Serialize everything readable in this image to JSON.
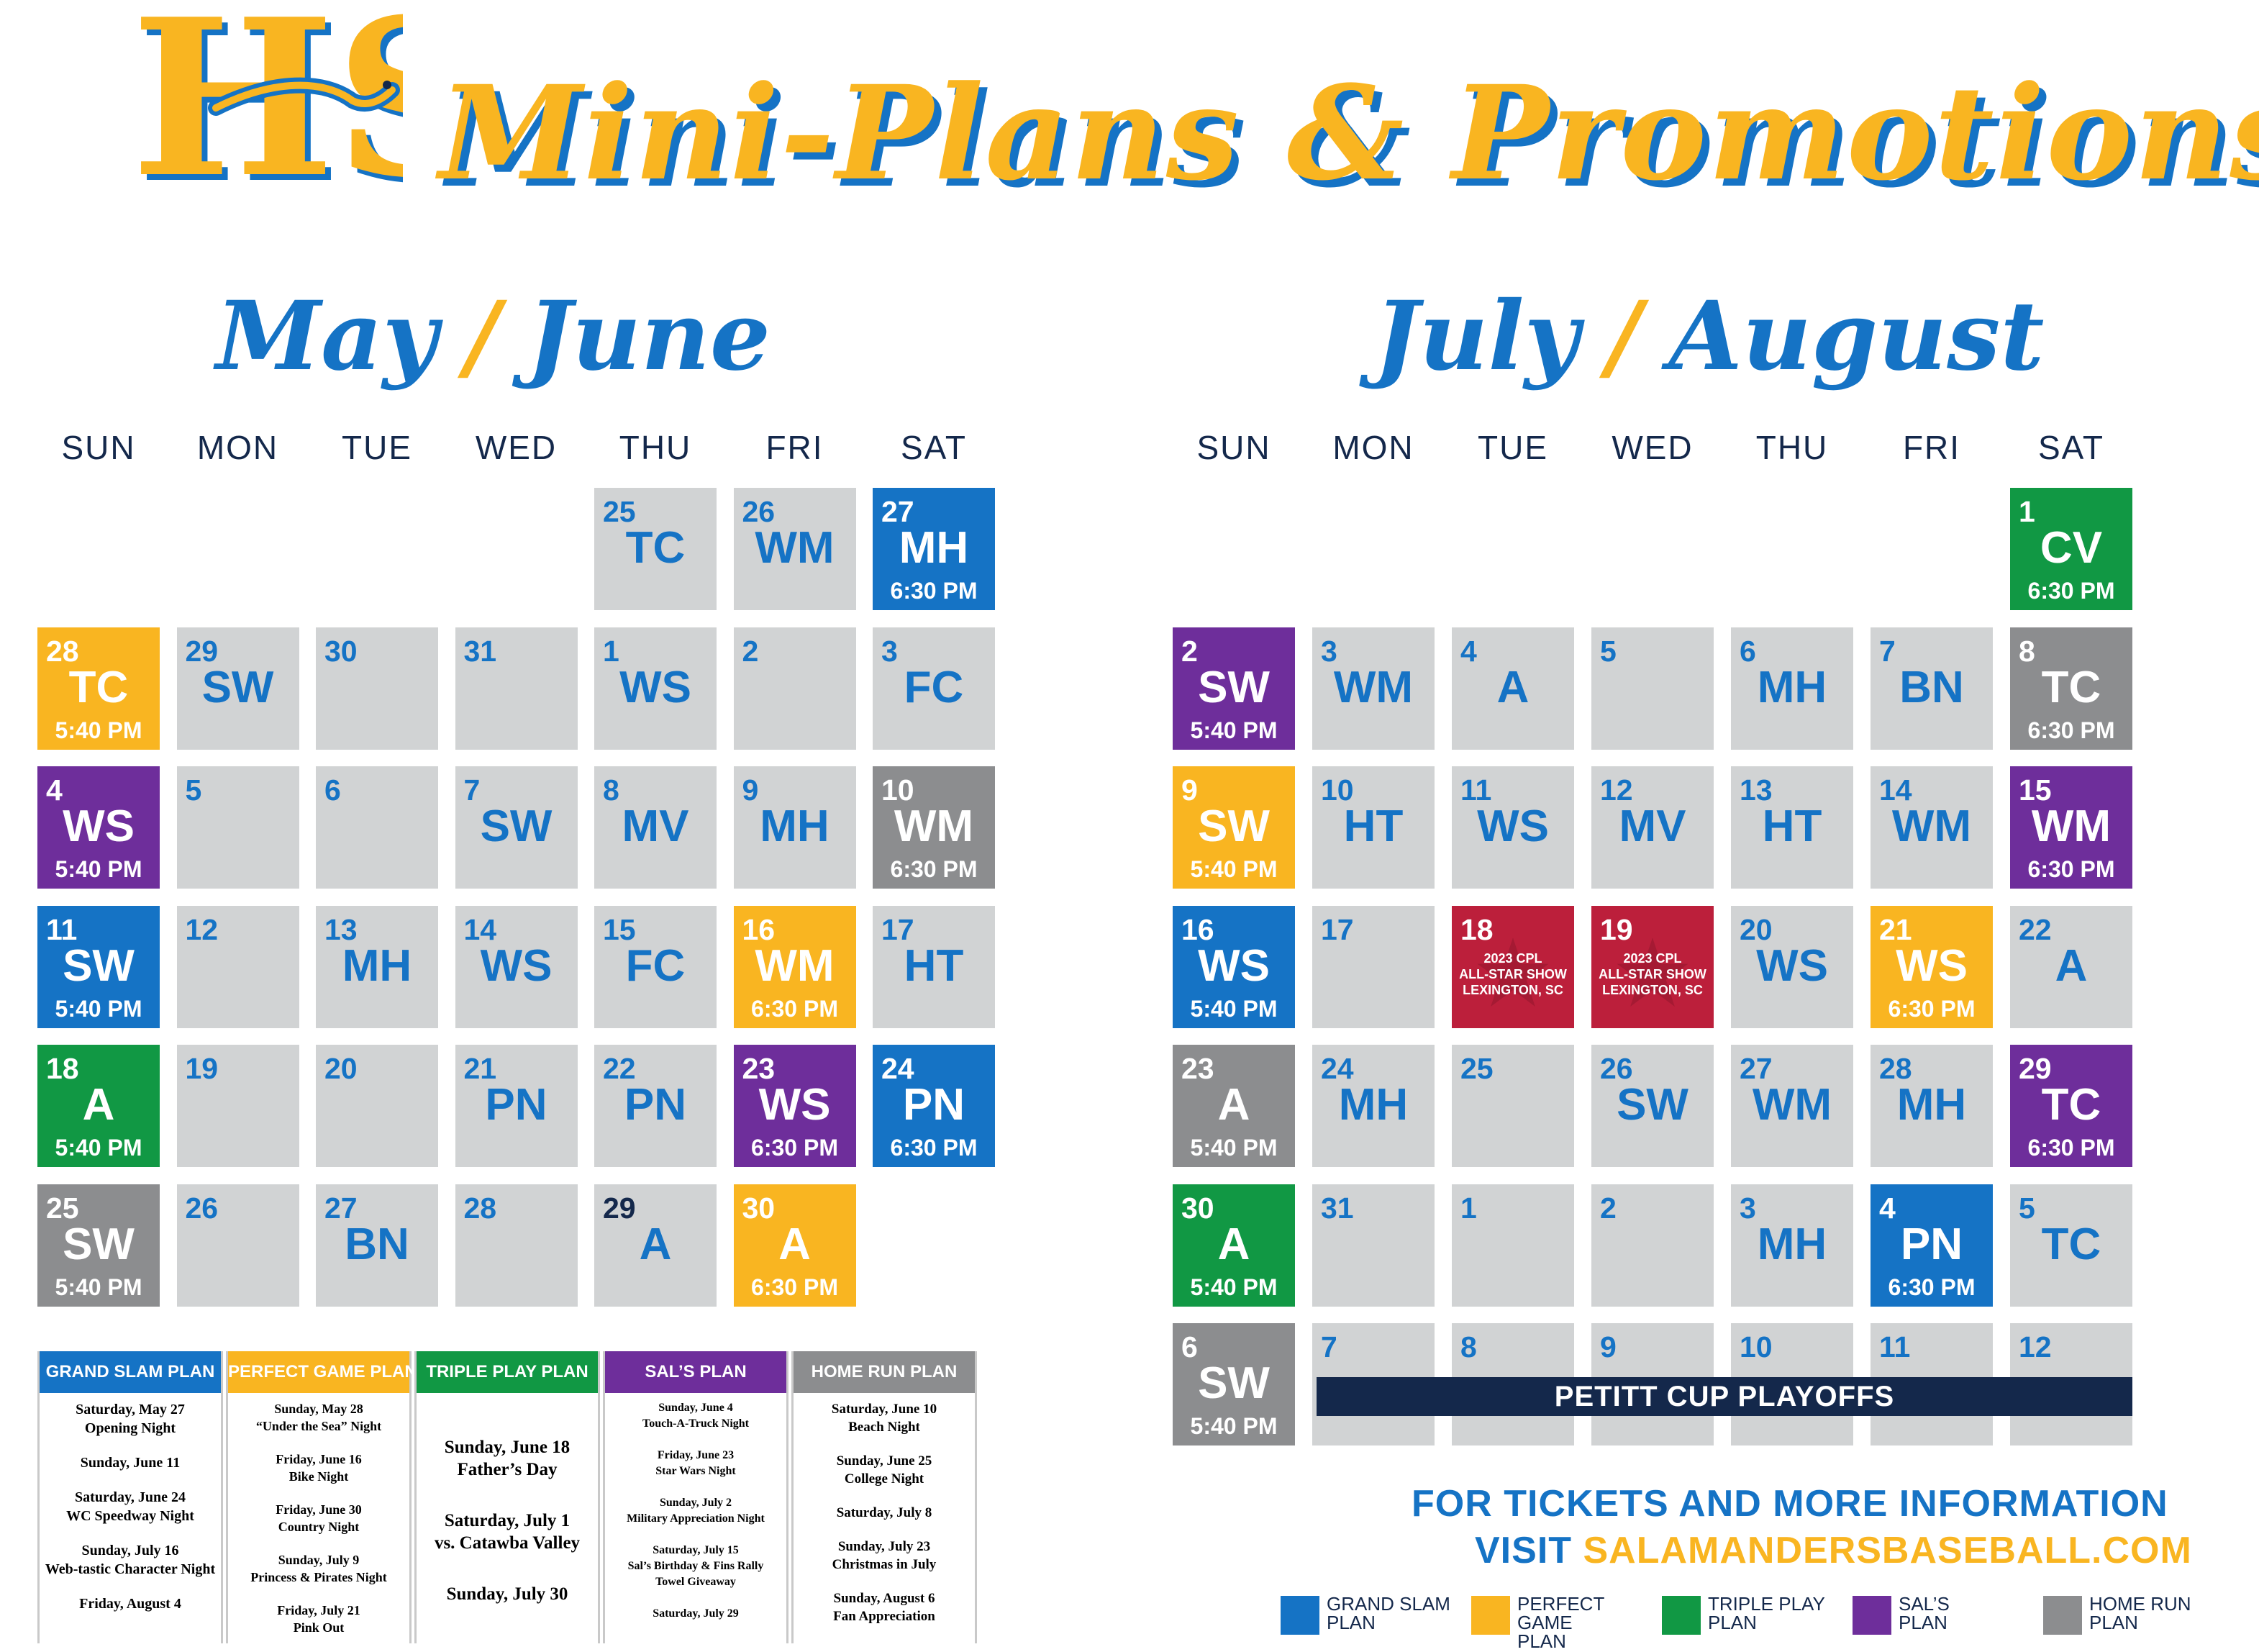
{
  "header": {
    "title": "Mini-Plans & Promotions",
    "logo_text": "HS"
  },
  "colors": {
    "grand_slam": "#1573c5",
    "perfect_game": "#f9b521",
    "triple_play": "#119844",
    "sals": "#6e2e9b",
    "home_run": "#8c8d8f",
    "game": "#d1d3d4",
    "all_star": "#bc1f3b",
    "navy": "#14284b"
  },
  "calendars": [
    {
      "title_a": "May",
      "title_b": "June",
      "days": [
        "SUN",
        "MON",
        "TUE",
        "WED",
        "THU",
        "FRI",
        "SAT"
      ],
      "cells": [
        {
          "day": "25",
          "code": "TC",
          "time": "",
          "type": "game",
          "col": 4,
          "row": 0
        },
        {
          "day": "26",
          "code": "WM",
          "time": "",
          "type": "game",
          "col": 5,
          "row": 0
        },
        {
          "day": "27",
          "code": "MH",
          "time": "6:30 PM",
          "type": "grand_slam",
          "col": 6,
          "row": 0
        },
        {
          "day": "28",
          "code": "TC",
          "time": "5:40 PM",
          "type": "perfect_game",
          "col": 0,
          "row": 1
        },
        {
          "day": "29",
          "code": "SW",
          "time": "",
          "type": "game",
          "col": 1,
          "row": 1
        },
        {
          "day": "30",
          "code": "",
          "time": "",
          "type": "game",
          "col": 2,
          "row": 1
        },
        {
          "day": "31",
          "code": "",
          "time": "",
          "type": "game",
          "col": 3,
          "row": 1
        },
        {
          "day": "1",
          "code": "WS",
          "time": "",
          "type": "game",
          "col": 4,
          "row": 1
        },
        {
          "day": "2",
          "code": "",
          "time": "",
          "type": "game",
          "col": 5,
          "row": 1
        },
        {
          "day": "3",
          "code": "FC",
          "time": "",
          "type": "game",
          "col": 6,
          "row": 1
        },
        {
          "day": "4",
          "code": "WS",
          "time": "5:40 PM",
          "type": "sals",
          "col": 0,
          "row": 2
        },
        {
          "day": "5",
          "code": "",
          "time": "",
          "type": "game",
          "col": 1,
          "row": 2
        },
        {
          "day": "6",
          "code": "",
          "time": "",
          "type": "game",
          "col": 2,
          "row": 2
        },
        {
          "day": "7",
          "code": "SW",
          "time": "",
          "type": "game",
          "col": 3,
          "row": 2
        },
        {
          "day": "8",
          "code": "MV",
          "time": "",
          "type": "game",
          "col": 4,
          "row": 2
        },
        {
          "day": "9",
          "code": "MH",
          "time": "",
          "type": "game",
          "col": 5,
          "row": 2
        },
        {
          "day": "10",
          "code": "WM",
          "time": "6:30 PM",
          "type": "home_run",
          "col": 6,
          "row": 2
        },
        {
          "day": "11",
          "code": "SW",
          "time": "5:40 PM",
          "type": "grand_slam",
          "col": 0,
          "row": 3
        },
        {
          "day": "12",
          "code": "",
          "time": "",
          "type": "game",
          "col": 1,
          "row": 3
        },
        {
          "day": "13",
          "code": "MH",
          "time": "",
          "type": "game",
          "col": 2,
          "row": 3
        },
        {
          "day": "14",
          "code": "WS",
          "time": "",
          "type": "game",
          "col": 3,
          "row": 3
        },
        {
          "day": "15",
          "code": "FC",
          "time": "",
          "type": "game",
          "col": 4,
          "row": 3
        },
        {
          "day": "16",
          "code": "WM",
          "time": "6:30 PM",
          "type": "perfect_game",
          "col": 5,
          "row": 3
        },
        {
          "day": "17",
          "code": "HT",
          "time": "",
          "type": "game",
          "col": 6,
          "row": 3
        },
        {
          "day": "18",
          "code": "A",
          "time": "5:40 PM",
          "type": "triple_play",
          "col": 0,
          "row": 4
        },
        {
          "day": "19",
          "code": "",
          "time": "",
          "type": "game",
          "col": 1,
          "row": 4
        },
        {
          "day": "20",
          "code": "",
          "time": "",
          "type": "game",
          "col": 2,
          "row": 4
        },
        {
          "day": "21",
          "code": "PN",
          "time": "",
          "type": "game",
          "col": 3,
          "row": 4
        },
        {
          "day": "22",
          "code": "PN",
          "time": "",
          "type": "game",
          "col": 4,
          "row": 4
        },
        {
          "day": "23",
          "code": "WS",
          "time": "6:30 PM",
          "type": "sals",
          "col": 5,
          "row": 4
        },
        {
          "day": "24",
          "code": "PN",
          "time": "6:30 PM",
          "type": "grand_slam",
          "col": 6,
          "row": 4
        },
        {
          "day": "25",
          "code": "SW",
          "time": "5:40 PM",
          "type": "home_run",
          "col": 0,
          "row": 5
        },
        {
          "day": "26",
          "code": "",
          "time": "",
          "type": "game",
          "col": 1,
          "row": 5
        },
        {
          "day": "27",
          "code": "BN",
          "time": "",
          "type": "game",
          "col": 2,
          "row": 5
        },
        {
          "day": "28",
          "code": "",
          "time": "",
          "type": "game",
          "col": 3,
          "row": 5
        },
        {
          "day": "29",
          "code": "A",
          "time": "",
          "type": "game_dark",
          "col": 4,
          "row": 5
        },
        {
          "day": "30",
          "code": "A",
          "time": "6:30 PM",
          "type": "perfect_game",
          "col": 5,
          "row": 5
        }
      ]
    },
    {
      "title_a": "July",
      "title_b": "August",
      "days": [
        "SUN",
        "MON",
        "TUE",
        "WED",
        "THU",
        "FRI",
        "SAT"
      ],
      "cells": [
        {
          "day": "1",
          "code": "CV",
          "time": "6:30 PM",
          "type": "triple_play",
          "col": 6,
          "row": 0
        },
        {
          "day": "2",
          "code": "SW",
          "time": "5:40 PM",
          "type": "sals",
          "col": 0,
          "row": 1
        },
        {
          "day": "3",
          "code": "WM",
          "time": "",
          "type": "game",
          "col": 1,
          "row": 1
        },
        {
          "day": "4",
          "code": "A",
          "time": "",
          "type": "game",
          "col": 2,
          "row": 1
        },
        {
          "day": "5",
          "code": "",
          "time": "",
          "type": "game",
          "col": 3,
          "row": 1
        },
        {
          "day": "6",
          "code": "MH",
          "time": "",
          "type": "game",
          "col": 4,
          "row": 1
        },
        {
          "day": "7",
          "code": "BN",
          "time": "",
          "type": "game",
          "col": 5,
          "row": 1
        },
        {
          "day": "8",
          "code": "TC",
          "time": "6:30 PM",
          "type": "home_run",
          "col": 6,
          "row": 1
        },
        {
          "day": "9",
          "code": "SW",
          "time": "5:40 PM",
          "type": "perfect_game",
          "col": 0,
          "row": 2
        },
        {
          "day": "10",
          "code": "HT",
          "time": "",
          "type": "game",
          "col": 1,
          "row": 2
        },
        {
          "day": "11",
          "code": "WS",
          "time": "",
          "type": "game",
          "col": 2,
          "row": 2
        },
        {
          "day": "12",
          "code": "MV",
          "time": "",
          "type": "game",
          "col": 3,
          "row": 2
        },
        {
          "day": "13",
          "code": "HT",
          "time": "",
          "type": "game",
          "col": 4,
          "row": 2
        },
        {
          "day": "14",
          "code": "WM",
          "time": "",
          "type": "game",
          "col": 5,
          "row": 2
        },
        {
          "day": "15",
          "code": "WM",
          "time": "6:30 PM",
          "type": "sals",
          "col": 6,
          "row": 2
        },
        {
          "day": "16",
          "code": "WS",
          "time": "5:40 PM",
          "type": "grand_slam",
          "col": 0,
          "row": 3
        },
        {
          "day": "17",
          "code": "",
          "time": "",
          "type": "game",
          "col": 1,
          "row": 3
        },
        {
          "day": "18",
          "code": "",
          "time": "",
          "type": "all_star",
          "note": "2023 CPL\nALL-STAR SHOW\nLEXINGTON, SC",
          "col": 2,
          "row": 3
        },
        {
          "day": "19",
          "code": "",
          "time": "",
          "type": "all_star",
          "note": "2023 CPL\nALL-STAR SHOW\nLEXINGTON, SC",
          "col": 3,
          "row": 3
        },
        {
          "day": "20",
          "code": "WS",
          "time": "",
          "type": "game",
          "col": 4,
          "row": 3
        },
        {
          "day": "21",
          "code": "WS",
          "time": "6:30 PM",
          "type": "perfect_game",
          "col": 5,
          "row": 3
        },
        {
          "day": "22",
          "code": "A",
          "time": "",
          "type": "game",
          "col": 6,
          "row": 3
        },
        {
          "day": "23",
          "code": "A",
          "time": "5:40 PM",
          "type": "home_run",
          "col": 0,
          "row": 4
        },
        {
          "day": "24",
          "code": "MH",
          "time": "",
          "type": "game",
          "col": 1,
          "row": 4
        },
        {
          "day": "25",
          "code": "",
          "time": "",
          "type": "game",
          "col": 2,
          "row": 4
        },
        {
          "day": "26",
          "code": "SW",
          "time": "",
          "type": "game",
          "col": 3,
          "row": 4
        },
        {
          "day": "27",
          "code": "WM",
          "time": "",
          "type": "game",
          "col": 4,
          "row": 4
        },
        {
          "day": "28",
          "code": "MH",
          "time": "",
          "type": "game",
          "col": 5,
          "row": 4
        },
        {
          "day": "29",
          "code": "TC",
          "time": "6:30 PM",
          "type": "sals",
          "col": 6,
          "row": 4
        },
        {
          "day": "30",
          "code": "A",
          "time": "5:40 PM",
          "type": "triple_play",
          "col": 0,
          "row": 5
        },
        {
          "day": "31",
          "code": "",
          "time": "",
          "type": "game",
          "col": 1,
          "row": 5
        },
        {
          "day": "1",
          "code": "",
          "time": "",
          "type": "game",
          "col": 2,
          "row": 5
        },
        {
          "day": "2",
          "code": "",
          "time": "",
          "type": "game",
          "col": 3,
          "row": 5
        },
        {
          "day": "3",
          "code": "MH",
          "time": "",
          "type": "game",
          "col": 4,
          "row": 5
        },
        {
          "day": "4",
          "code": "PN",
          "time": "6:30 PM",
          "type": "grand_slam",
          "col": 5,
          "row": 5
        },
        {
          "day": "5",
          "code": "TC",
          "time": "",
          "type": "game",
          "col": 6,
          "row": 5
        },
        {
          "day": "6",
          "code": "SW",
          "time": "5:40 PM",
          "type": "home_run",
          "col": 0,
          "row": 6
        },
        {
          "day": "7",
          "code": "",
          "time": "",
          "type": "game",
          "col": 1,
          "row": 6
        },
        {
          "day": "8",
          "code": "",
          "time": "",
          "type": "game",
          "col": 2,
          "row": 6
        },
        {
          "day": "9",
          "code": "",
          "time": "",
          "type": "game",
          "col": 3,
          "row": 6
        },
        {
          "day": "10",
          "code": "",
          "time": "",
          "type": "game",
          "col": 4,
          "row": 6
        },
        {
          "day": "11",
          "code": "",
          "time": "",
          "type": "game",
          "col": 5,
          "row": 6
        },
        {
          "day": "12",
          "code": "",
          "time": "",
          "type": "game",
          "col": 6,
          "row": 6
        }
      ],
      "playoffs_label": "PETITT CUP PLAYOFFS"
    }
  ],
  "plans": [
    {
      "name": "GRAND SLAM PLAN",
      "type": "grand_slam",
      "font": 20,
      "items": [
        "Saturday, May 27\nOpening Night",
        "Sunday, June 11",
        "Saturday, June 24\nWC Speedway Night",
        "Sunday, July 16\nWeb-tastic Character Night",
        "Friday, August 4"
      ]
    },
    {
      "name": "PERFECT GAME PLAN",
      "type": "perfect_game",
      "font": 18,
      "items": [
        "Sunday, May 28\n“Under the Sea” Night",
        "Friday, June 16\nBike Night",
        "Friday, June 30\nCountry Night",
        "Sunday, July 9\nPrincess & Pirates Night",
        "Friday, July 21\nPink Out"
      ]
    },
    {
      "name": "TRIPLE PLAY PLAN",
      "type": "triple_play",
      "font": 25,
      "items": [
        "Sunday, June 18\nFather’s Day",
        "Saturday, July 1\nvs. Catawba Valley",
        "Sunday, July 30"
      ]
    },
    {
      "name": "SAL’S PLAN",
      "type": "sals",
      "font": 16,
      "items": [
        "Sunday, June 4\nTouch-A-Truck Night",
        "Friday, June 23\nStar Wars Night",
        "Sunday, July 2\nMilitary Appreciation Night",
        "Saturday, July 15\nSal’s Birthday & Fins Rally\nTowel Giveaway",
        "Saturday, July 29"
      ]
    },
    {
      "name": "HOME RUN PLAN",
      "type": "home_run",
      "font": 19,
      "items": [
        "Saturday, June 10\nBeach Night",
        "Sunday, June 25\nCollege Night",
        "Saturday, July 8",
        "Sunday, July 23\nChristmas in July",
        "Sunday, August 6\nFan Appreciation"
      ]
    }
  ],
  "info": {
    "line1": "FOR TICKETS AND MORE INFORMATION",
    "line2_prefix": "VISIT",
    "url": "SALAMANDERSBASEBALL.COM"
  },
  "legend": [
    {
      "label": "GRAND SLAM\nPLAN",
      "type": "grand_slam"
    },
    {
      "label": "PERFECT GAME\nPLAN",
      "type": "perfect_game"
    },
    {
      "label": "TRIPLE PLAY\nPLAN",
      "type": "triple_play"
    },
    {
      "label": "SAL’S\nPLAN",
      "type": "sals"
    },
    {
      "label": "HOME RUN\nPLAN",
      "type": "home_run"
    }
  ]
}
